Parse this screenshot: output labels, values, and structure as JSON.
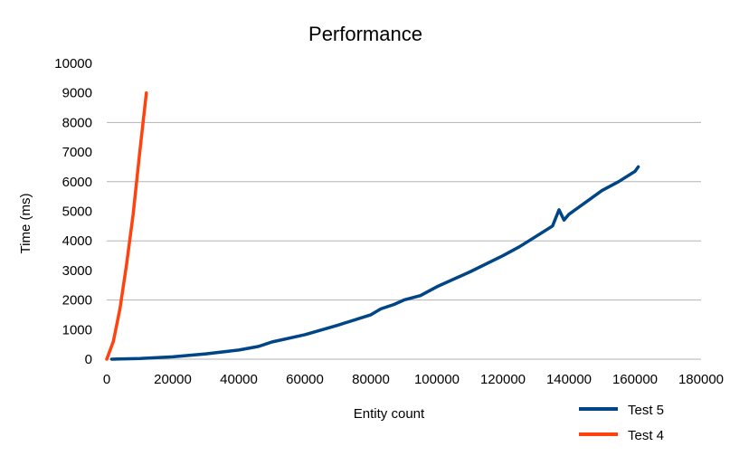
{
  "chart_data": {
    "type": "line",
    "title": "Performance",
    "xlabel": "Entity count",
    "ylabel": "Time (ms)",
    "xlim": [
      0,
      180000
    ],
    "ylim": [
      0,
      10000
    ],
    "xticks": [
      0,
      20000,
      40000,
      60000,
      80000,
      100000,
      120000,
      140000,
      160000,
      180000
    ],
    "yticks": [
      0,
      1000,
      2000,
      3000,
      4000,
      5000,
      6000,
      7000,
      8000,
      9000,
      10000
    ],
    "grid": "horizontal at 2000 intervals",
    "legend_position": "bottom-right",
    "series": [
      {
        "name": "Test 5",
        "color": "#004586",
        "x": [
          1500,
          10000,
          20000,
          30000,
          40000,
          46000,
          50000,
          60000,
          70000,
          80000,
          83000,
          87000,
          90000,
          95000,
          100000,
          110000,
          120000,
          125000,
          130000,
          135000,
          137000,
          138500,
          140000,
          145000,
          150000,
          155000,
          160000,
          161000
        ],
        "y": [
          0,
          20,
          80,
          180,
          310,
          430,
          580,
          830,
          1150,
          1500,
          1700,
          1850,
          2000,
          2150,
          2450,
          2950,
          3500,
          3800,
          4150,
          4500,
          5050,
          4700,
          4900,
          5300,
          5700,
          6000,
          6350,
          6500
        ]
      },
      {
        "name": "Test 4",
        "color": "#ff420e",
        "x": [
          0,
          2000,
          4000,
          6000,
          8000,
          10000,
          12000
        ],
        "y": [
          0,
          600,
          1700,
          3200,
          4900,
          7000,
          9000
        ]
      }
    ]
  }
}
